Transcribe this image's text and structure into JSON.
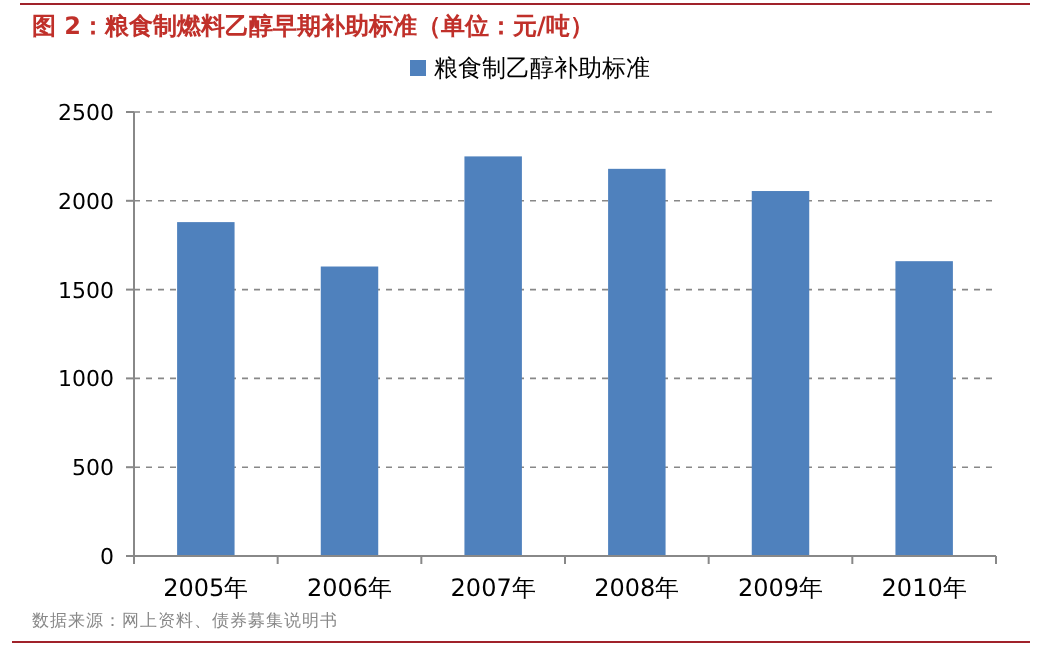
{
  "chart_data": {
    "type": "bar",
    "title": "图 2：粮食制燃料乙醇早期补助标准（单位：元/吨）",
    "categories": [
      "2005年",
      "2006年",
      "2007年",
      "2008年",
      "2009年",
      "2010年"
    ],
    "series": [
      {
        "name": "粮食制乙醇补助标准",
        "color": "#4f81bd",
        "values": [
          1880,
          1630,
          2250,
          2180,
          2055,
          1660
        ]
      }
    ],
    "ylim": [
      0,
      2500
    ],
    "yticks": [
      0,
      500,
      1000,
      1500,
      2000,
      2500
    ],
    "grid": "y",
    "legend": "top",
    "annotations": [
      "数据来源：网上资料、债券募集说明书"
    ]
  }
}
